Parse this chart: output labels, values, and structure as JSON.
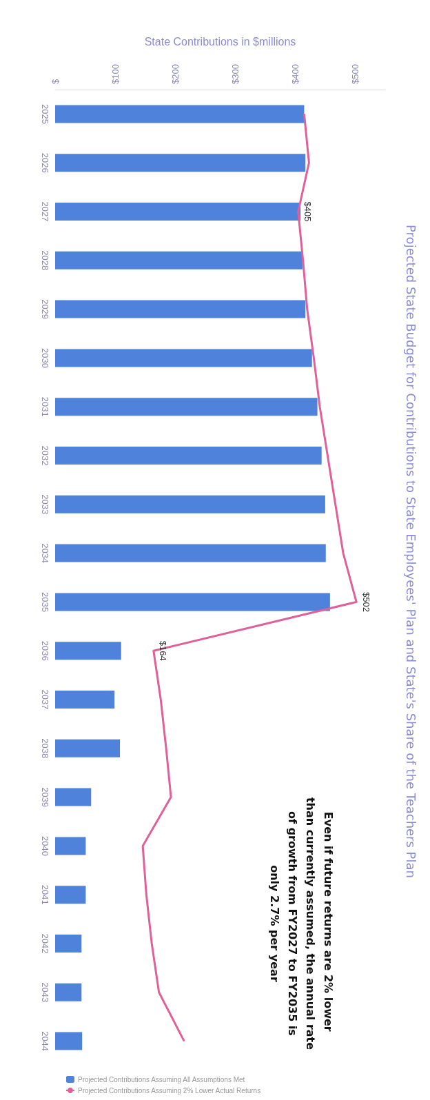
{
  "chart_data": {
    "type": "bar",
    "title": "Projected State Budget for Contributions to State Employees' Plan and State's Share of the Teachers Plan",
    "xlabel": "State Contributions in $millions",
    "orientation": "horizontal",
    "categories": [
      "2025",
      "2026",
      "2027",
      "2028",
      "2029",
      "2030",
      "2031",
      "2032",
      "2033",
      "2034",
      "2035",
      "2036",
      "2037",
      "2038",
      "2039",
      "2040",
      "2041",
      "2042",
      "2043",
      "2044"
    ],
    "series": [
      {
        "name": "Projected Contributions Assuming All Assumptions Met",
        "color": "#4f82db",
        "values": [
          415,
          417,
          409,
          412,
          417,
          428,
          437,
          444,
          450,
          451,
          458,
          110,
          99,
          108,
          60,
          51,
          51,
          44,
          44,
          45
        ]
      },
      {
        "name": "Projected Contributions Assuming 2% Lower Actual Returns",
        "type": "line",
        "color": "#e0609a",
        "values": [
          415,
          423,
          405,
          413,
          420,
          431,
          441,
          454,
          467,
          480,
          502,
          164,
          176,
          185,
          193,
          146,
          152,
          161,
          173,
          215
        ],
        "value_labels": [
          null,
          null,
          "$405",
          null,
          null,
          null,
          null,
          null,
          null,
          null,
          "$502",
          "$164",
          null,
          null,
          null,
          null,
          null,
          null,
          null,
          null
        ]
      }
    ],
    "xlim": [
      0,
      550
    ],
    "xticks": [
      {
        "value": 0,
        "label": "$"
      },
      {
        "value": 100,
        "label": "$100"
      },
      {
        "value": 200,
        "label": "$200"
      },
      {
        "value": 300,
        "label": "$300"
      },
      {
        "value": 400,
        "label": "$400"
      },
      {
        "value": 500,
        "label": "$500"
      }
    ],
    "legend": "bottom",
    "marker": "none",
    "annotations": [
      "Even if future returns are 2% lower than currently assumed, the annual rate of growth from FY2027 to FY2035 is only 2.7% per year"
    ]
  }
}
